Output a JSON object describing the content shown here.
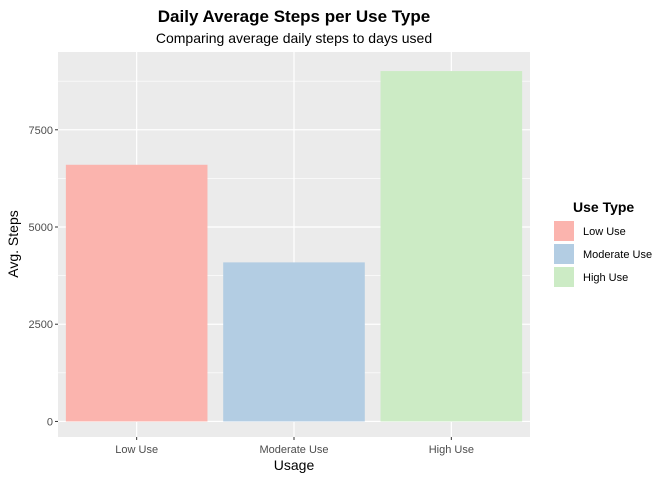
{
  "chart_data": {
    "type": "bar",
    "title": "Daily Average Steps per Use Type",
    "subtitle": "Comparing average daily steps to days used",
    "xlabel": "Usage",
    "ylabel": "Avg. Steps",
    "categories": [
      "Low Use",
      "Moderate Use",
      "High Use"
    ],
    "values": [
      6600,
      4090,
      9010
    ],
    "colors": [
      "#FBB4AE",
      "#B3CDE3",
      "#CCEBC5"
    ],
    "ylim": [
      -400,
      9500
    ],
    "yticks": [
      0,
      2500,
      5000,
      7500
    ],
    "ytick_labels": [
      "0",
      "2500",
      "5000",
      "7500"
    ],
    "grid": true,
    "panel_background": "#EBEBEB",
    "legend": {
      "title": "Use Type",
      "position": "right",
      "entries": [
        "Low Use",
        "Moderate Use",
        "High Use"
      ]
    }
  }
}
